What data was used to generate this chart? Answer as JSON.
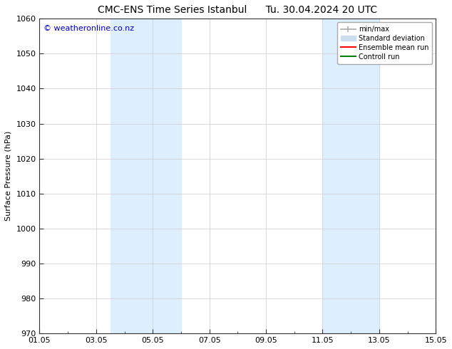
{
  "title": "CMC-ENS Time Series Istanbul      Tu. 30.04.2024 20 UTC",
  "ylabel": "Surface Pressure (hPa)",
  "ylim": [
    970,
    1060
  ],
  "x_ticks": [
    "01.05",
    "03.05",
    "05.05",
    "07.05",
    "09.05",
    "11.05",
    "13.05",
    "15.05"
  ],
  "x_ticks_numeric": [
    1,
    3,
    5,
    7,
    9,
    11,
    13,
    15
  ],
  "xlim": [
    1,
    15
  ],
  "yticks": [
    970,
    980,
    990,
    1000,
    1010,
    1020,
    1030,
    1040,
    1050,
    1060
  ],
  "shaded_regions": [
    {
      "xmin": 3.5,
      "xmax": 4.5
    },
    {
      "xmin": 4.5,
      "xmax": 6.0
    },
    {
      "xmin": 11.0,
      "xmax": 12.0
    },
    {
      "xmin": 12.0,
      "xmax": 13.0
    }
  ],
  "shaded_color": "#ddeeff",
  "copyright_text": "© weatheronline.co.nz",
  "copyright_color": "#0000bb",
  "legend_labels": [
    "min/max",
    "Standard deviation",
    "Ensemble mean run",
    "Controll run"
  ],
  "legend_line_colors": [
    "#aaaaaa",
    "#ccddf0",
    "#ff0000",
    "#008000"
  ],
  "grid_color": "#cccccc",
  "grid_minor_color": "#e8e8e8",
  "background_color": "#ffffff",
  "title_fontsize": 10,
  "axis_label_fontsize": 8,
  "tick_fontsize": 8,
  "copyright_fontsize": 8
}
